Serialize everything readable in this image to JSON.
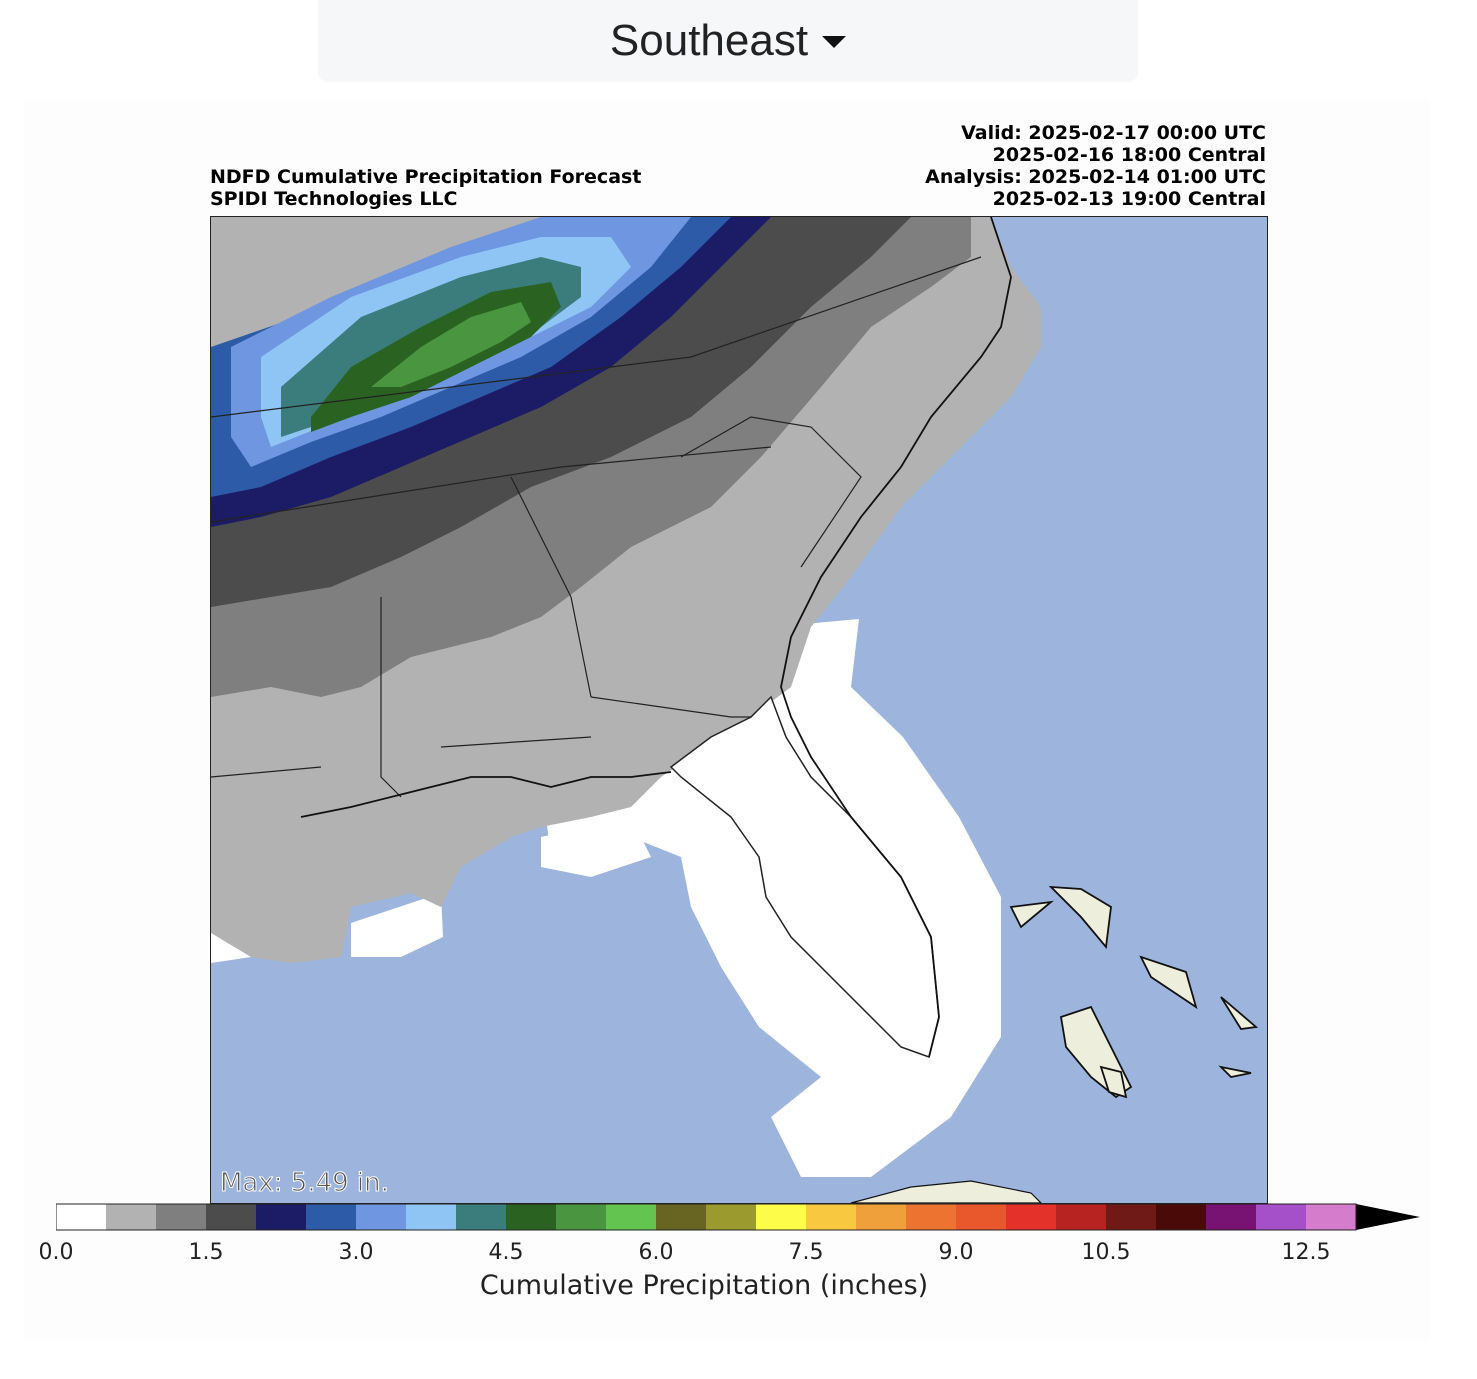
{
  "region_selector": {
    "label": "Southeast",
    "icon": "caret-down-icon"
  },
  "header": {
    "title": "NDFD Cumulative Precipitation Forecast",
    "source": "SPIDI Technologies LLC",
    "valid_utc": "Valid: 2025-02-17 00:00 UTC",
    "valid_central": "2025-02-16 18:00 Central",
    "analysis_utc": "Analysis: 2025-02-14 01:00 UTC",
    "analysis_central": "2025-02-13 19:00 Central"
  },
  "map": {
    "max_label": "Max: 5.49 in.",
    "colors": {
      "ocean": "#9db4dd",
      "land_dry": "#ffffff",
      "bahamas": "#eeeedd"
    }
  },
  "colorbar": {
    "title": "Cumulative Precipitation (inches)",
    "bin_width": 0.5,
    "range": [
      0.0,
      13.0
    ],
    "extend": "max",
    "extend_color": "#000000",
    "tick_values": [
      0.0,
      1.5,
      3.0,
      4.5,
      6.0,
      7.5,
      9.0,
      10.5,
      12.5
    ],
    "tick_labels": [
      "0.0",
      "1.5",
      "3.0",
      "4.5",
      "6.0",
      "7.5",
      "9.0",
      "10.5",
      "12.5"
    ],
    "colors": [
      "#ffffff",
      "#b2b2b2",
      "#7f7f7f",
      "#4c4c4c",
      "#1c1c66",
      "#2e5ba8",
      "#6f96e0",
      "#8fc5f5",
      "#3b7d7d",
      "#2a6321",
      "#4a9640",
      "#63c450",
      "#676521",
      "#9b9a2f",
      "#fcfc49",
      "#f8c840",
      "#f0a03a",
      "#ec7430",
      "#e8582c",
      "#e4312a",
      "#b72320",
      "#6f1a16",
      "#4a0a08",
      "#781373",
      "#a54fc8",
      "#d67ccc"
    ]
  }
}
